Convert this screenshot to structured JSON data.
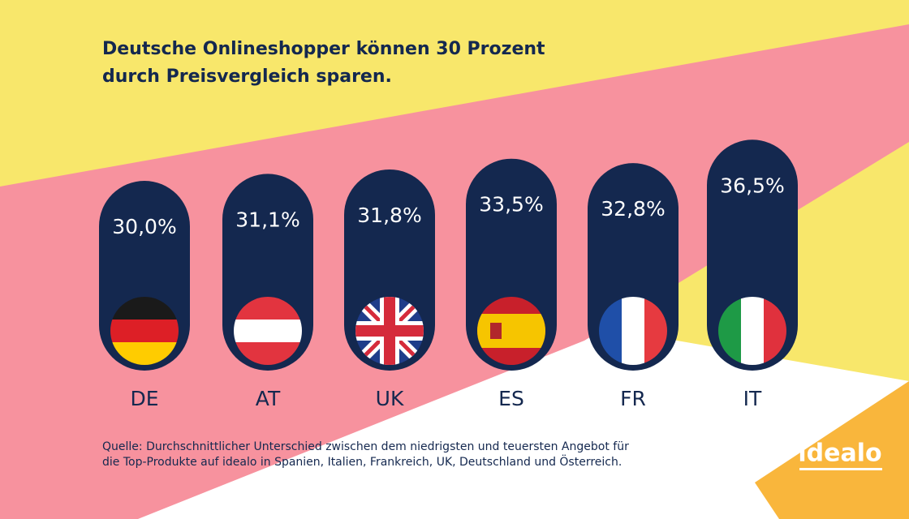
{
  "title": "Deutsche Onlineshopper können 30 Prozent durch Preisvergleich sparen.",
  "chart_data": {
    "type": "bar",
    "categories": [
      "DE",
      "AT",
      "UK",
      "ES",
      "FR",
      "IT"
    ],
    "values": [
      30.0,
      31.1,
      31.8,
      33.5,
      32.8,
      36.5
    ],
    "value_labels": [
      "30,0%",
      "31,1%",
      "31,8%",
      "33,5%",
      "32,8%",
      "36,5%"
    ],
    "color": "#14284f"
  },
  "source": "Quelle: Durchschnittlicher Unterschied zwischen dem niedrigsten und teuersten Angebot für die Top-Produkte auf idealo in Spanien, Italien, Frankreich, UK, Deutschland und Österreich.",
  "logo": "idealo"
}
